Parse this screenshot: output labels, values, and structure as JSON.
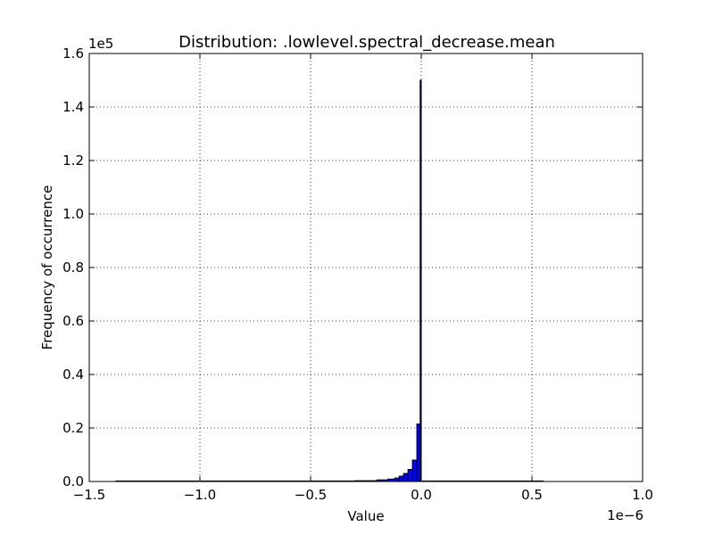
{
  "chart_data": {
    "type": "bar",
    "title": "Distribution: .lowlevel.spectral_decrease.mean",
    "xlabel": "Value",
    "ylabel": "Frequency of occurrence",
    "x_offset_label": "1e−6",
    "y_offset_label": "1e5",
    "xlim": [
      -1.5,
      1.0
    ],
    "ylim": [
      0,
      1.6
    ],
    "x_unit_scale": "1e-6",
    "y_unit_scale": "1e5",
    "grid": true,
    "bar_color": "#0000ff",
    "xticks": [
      {
        "value": -1.5,
        "label": "−1.5"
      },
      {
        "value": -1.0,
        "label": "−1.0"
      },
      {
        "value": -0.5,
        "label": "−0.5"
      },
      {
        "value": 0.0,
        "label": "0.0"
      },
      {
        "value": 0.5,
        "label": "0.5"
      },
      {
        "value": 1.0,
        "label": "1.0"
      }
    ],
    "yticks": [
      {
        "value": 0.0,
        "label": "0.0"
      },
      {
        "value": 0.2,
        "label": "0.2"
      },
      {
        "value": 0.4,
        "label": "0.4"
      },
      {
        "value": 0.6,
        "label": "0.6"
      },
      {
        "value": 0.8,
        "label": "0.8"
      },
      {
        "value": 1.0,
        "label": "1.0"
      },
      {
        "value": 1.2,
        "label": "1.2"
      },
      {
        "value": 1.4,
        "label": "1.4"
      },
      {
        "value": 1.6,
        "label": "1.6"
      }
    ],
    "bins": [
      {
        "x0": -1.38,
        "x1": -0.3,
        "value": 0.0005
      },
      {
        "x0": -0.3,
        "x1": -0.2,
        "value": 0.003
      },
      {
        "x0": -0.2,
        "x1": -0.15,
        "value": 0.006
      },
      {
        "x0": -0.15,
        "x1": -0.12,
        "value": 0.009
      },
      {
        "x0": -0.12,
        "x1": -0.1,
        "value": 0.013
      },
      {
        "x0": -0.1,
        "x1": -0.08,
        "value": 0.02
      },
      {
        "x0": -0.08,
        "x1": -0.06,
        "value": 0.03
      },
      {
        "x0": -0.06,
        "x1": -0.04,
        "value": 0.045
      },
      {
        "x0": -0.04,
        "x1": -0.02,
        "value": 0.08
      },
      {
        "x0": -0.02,
        "x1": -0.005,
        "value": 0.215
      },
      {
        "x0": -0.005,
        "x1": 0.0,
        "value": 1.5
      },
      {
        "x0": 0.0,
        "x1": 0.55,
        "value": 0.0008
      }
    ]
  }
}
